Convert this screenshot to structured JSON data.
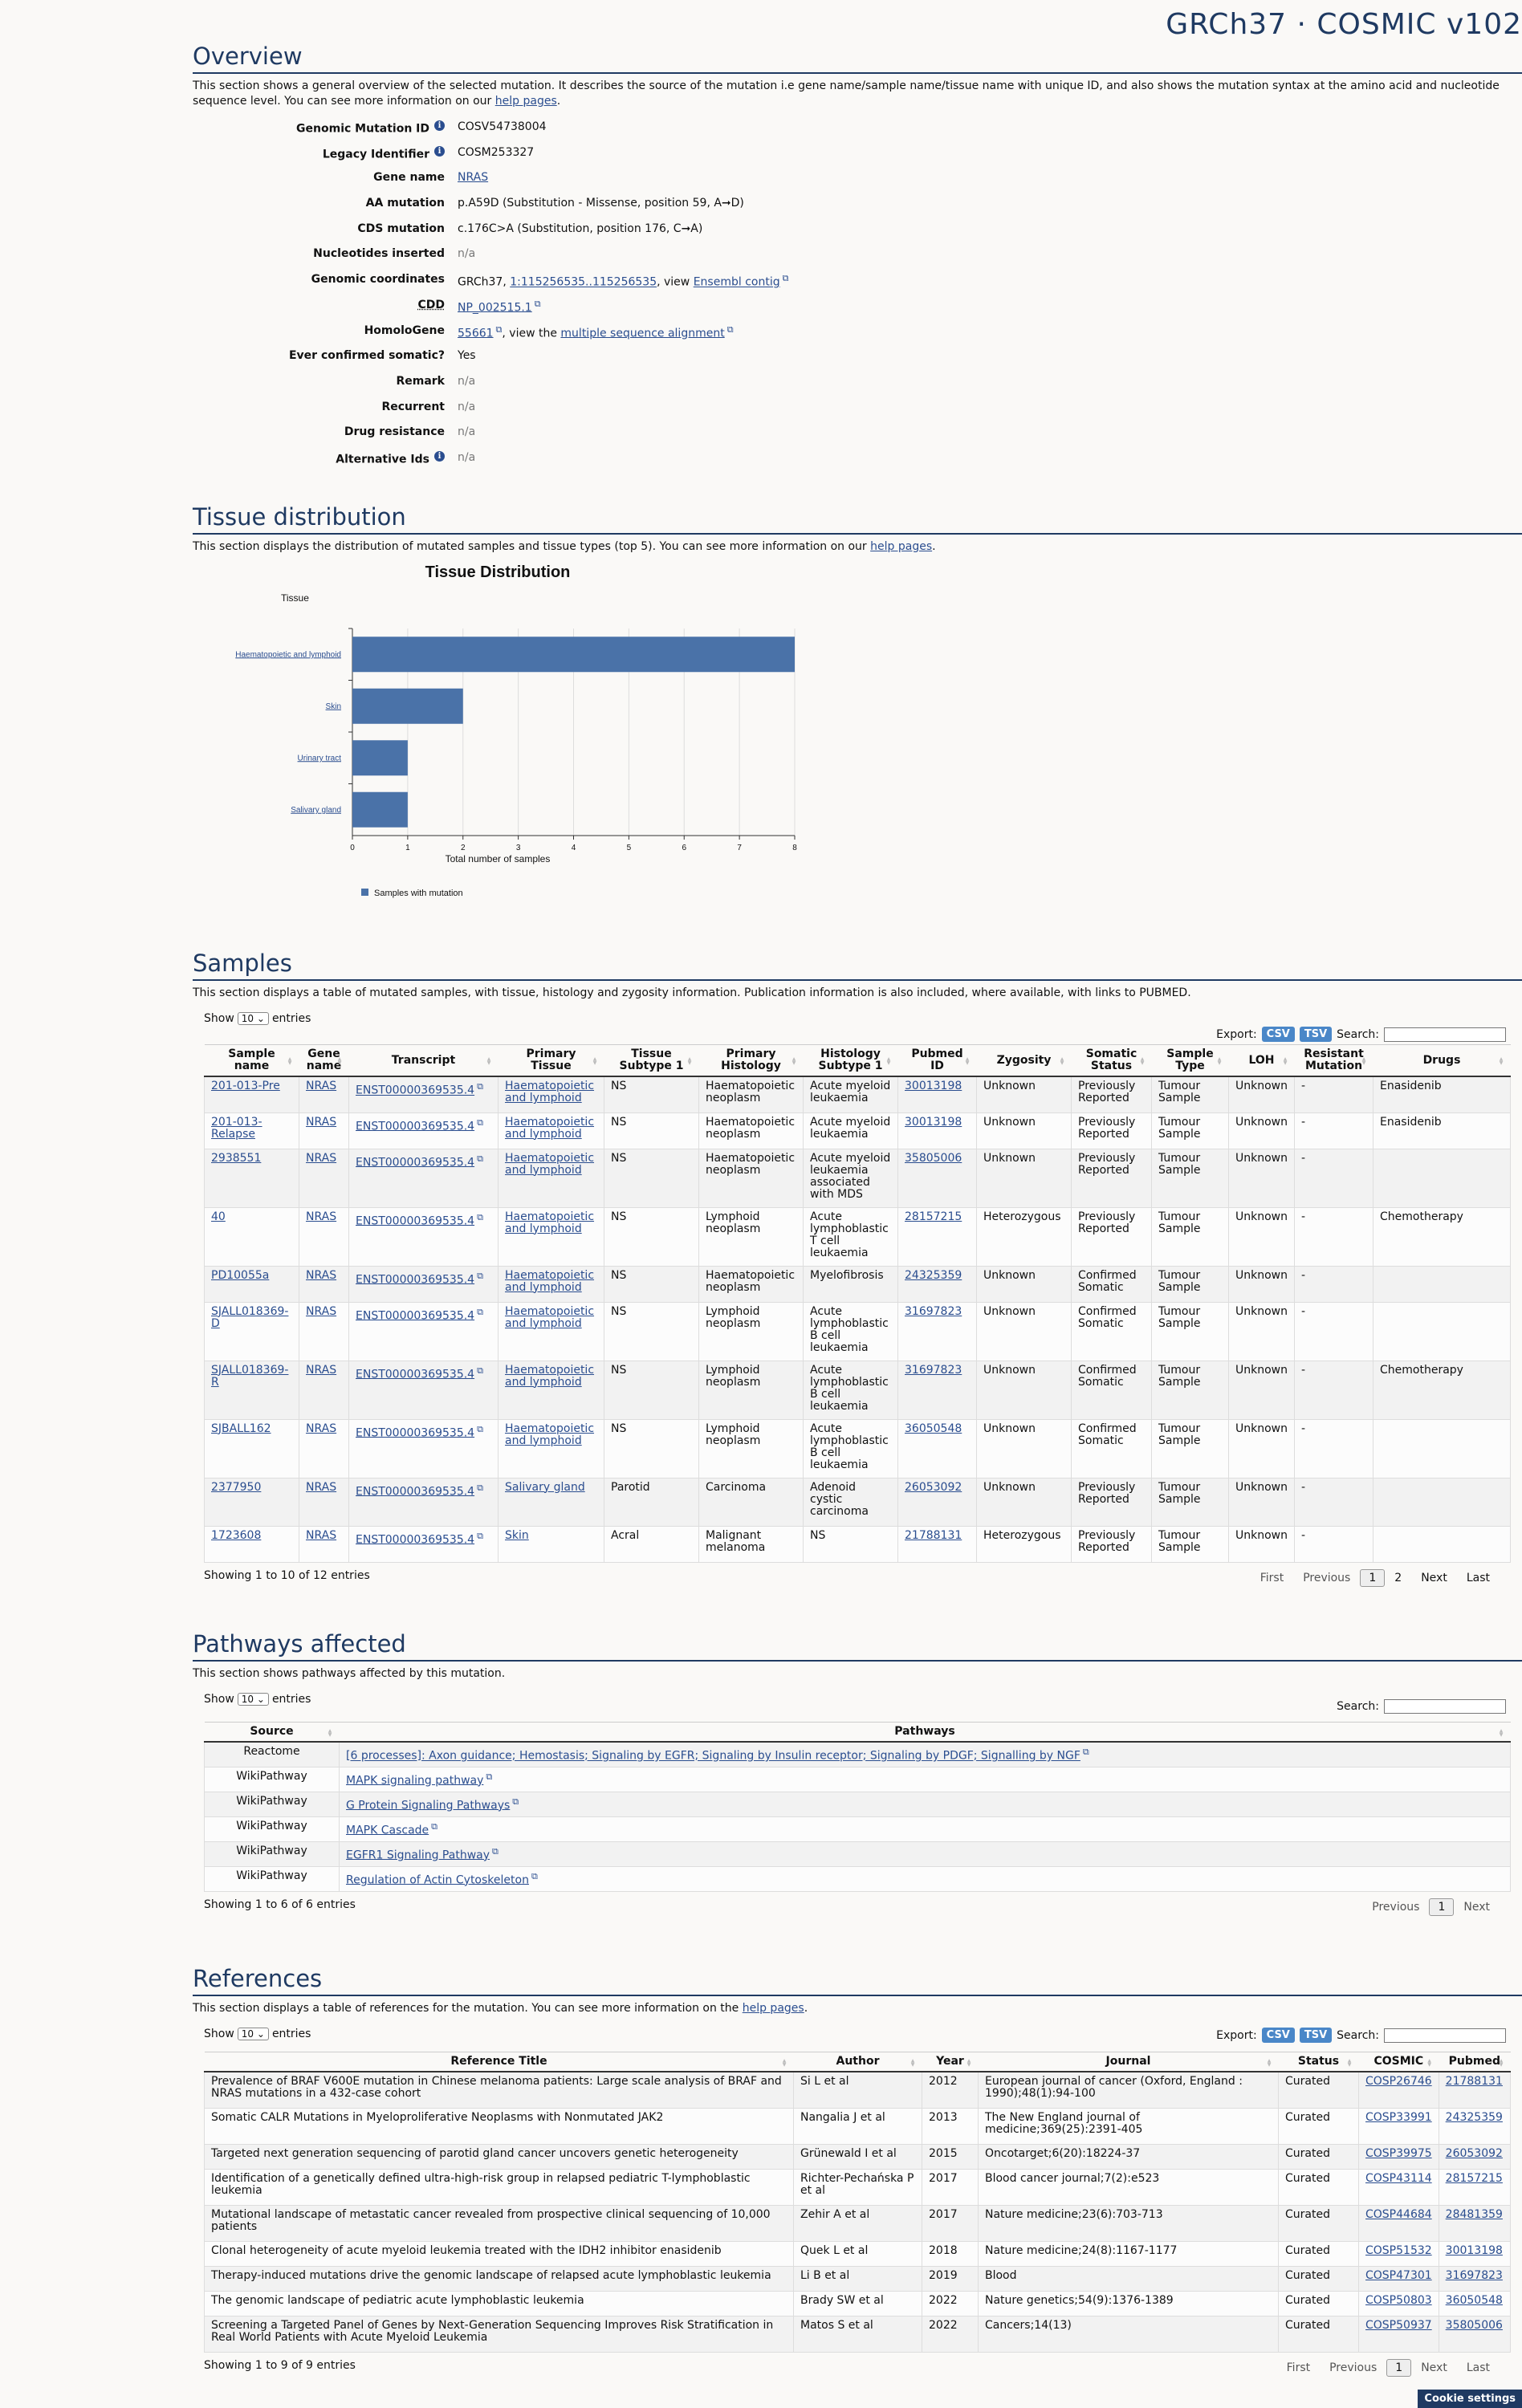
{
  "header": {
    "title": "GRCh37 · COSMIC v102"
  },
  "overview": {
    "title": "Overview",
    "desc_pre": "This section shows a general overview of the selected mutation. It describes the source of the mutation i.e gene name/sample name/tissue name with unique ID, and also shows the mutation syntax at the amino acid and nucleotide sequence level. You can see more information on our ",
    "desc_link": "help pages",
    "desc_post": ".",
    "fields": {
      "genomic_mutation_id": {
        "label": "Genomic Mutation ID",
        "value": "COSV54738004"
      },
      "legacy_identifier": {
        "label": "Legacy Identifier",
        "value": "COSM253327"
      },
      "gene_name": {
        "label": "Gene name",
        "value": "NRAS"
      },
      "aa_mutation": {
        "label": "AA mutation",
        "value": "p.A59D (Substitution - Missense, position 59, A➞D)"
      },
      "cds_mutation": {
        "label": "CDS mutation",
        "value": "c.176C>A (Substitution, position 176, C➞A)"
      },
      "nucleotides_inserted": {
        "label": "Nucleotides inserted",
        "value": "n/a"
      },
      "genomic_coordinates": {
        "label": "Genomic coordinates",
        "prefix": "GRCh37, ",
        "link": "1:115256535..115256535",
        "mid": ", view ",
        "link2": "Ensembl contig"
      },
      "cdd": {
        "label": "CDD",
        "value": "NP_002515.1"
      },
      "homologene": {
        "label": "HomoloGene",
        "link": "55661",
        "mid": ", view the ",
        "link2": "multiple sequence alignment"
      },
      "ever_confirmed": {
        "label": "Ever confirmed somatic?",
        "value": "Yes"
      },
      "remark": {
        "label": "Remark",
        "value": "n/a"
      },
      "recurrent": {
        "label": "Recurrent",
        "value": "n/a"
      },
      "drug_resistance": {
        "label": "Drug resistance",
        "value": "n/a"
      },
      "alternative_ids": {
        "label": "Alternative Ids",
        "value": "n/a"
      }
    }
  },
  "tissue": {
    "title": "Tissue distribution",
    "desc_pre": "This section displays the distribution of mutated samples and tissue types (top 5). You can see more information on our ",
    "desc_link": "help pages",
    "desc_post": "."
  },
  "chart_data": {
    "type": "bar",
    "orientation": "horizontal",
    "title": "Tissue Distribution",
    "ylabel": "Tissue",
    "xlabel": "Total number of samples",
    "categories": [
      "Haematopoietic and lymphoid",
      "Skin",
      "Urinary tract",
      "Salivary gland"
    ],
    "values": [
      8,
      2,
      1,
      1
    ],
    "xlim": [
      0,
      8
    ],
    "xticks": [
      "0",
      "1",
      "2",
      "3",
      "4",
      "5",
      "6",
      "7",
      "8"
    ],
    "legend": "Samples with mutation",
    "color": "#4a72a8",
    "grid": true
  },
  "samples": {
    "title": "Samples",
    "desc": "This section displays a table of mutated samples, with tissue, histology and zygosity information. Publication information is also included, where available, with links to PUBMED.",
    "show": "Show",
    "entries": "entries",
    "length": "10",
    "export": "Export:",
    "csv": "CSV",
    "tsv": "TSV",
    "search": "Search:",
    "headers": [
      "Sample name",
      "Gene name",
      "Transcript",
      "Primary Tissue",
      "Tissue Subtype 1",
      "Primary Histology",
      "Histology Subtype 1",
      "Pubmed ID",
      "Zygosity",
      "Somatic Status",
      "Sample Type",
      "LOH",
      "Resistant Mutation",
      "Drugs"
    ],
    "rows": [
      [
        "201-013-Pre",
        "NRAS",
        "ENST00000369535.4",
        "Haematopoietic and lymphoid",
        "NS",
        "Haematopoietic neoplasm",
        "Acute myeloid leukaemia",
        "30013198",
        "Unknown",
        "Previously Reported",
        "Tumour Sample",
        "Unknown",
        "-",
        "Enasidenib"
      ],
      [
        "201-013-Relapse",
        "NRAS",
        "ENST00000369535.4",
        "Haematopoietic and lymphoid",
        "NS",
        "Haematopoietic neoplasm",
        "Acute myeloid leukaemia",
        "30013198",
        "Unknown",
        "Previously Reported",
        "Tumour Sample",
        "Unknown",
        "-",
        "Enasidenib"
      ],
      [
        "2938551",
        "NRAS",
        "ENST00000369535.4",
        "Haematopoietic and lymphoid",
        "NS",
        "Haematopoietic neoplasm",
        "Acute myeloid leukaemia associated with MDS",
        "35805006",
        "Unknown",
        "Previously Reported",
        "Tumour Sample",
        "Unknown",
        "-",
        ""
      ],
      [
        "40",
        "NRAS",
        "ENST00000369535.4",
        "Haematopoietic and lymphoid",
        "NS",
        "Lymphoid neoplasm",
        "Acute lymphoblastic T cell leukaemia",
        "28157215",
        "Heterozygous",
        "Previously Reported",
        "Tumour Sample",
        "Unknown",
        "-",
        "Chemotherapy"
      ],
      [
        "PD10055a",
        "NRAS",
        "ENST00000369535.4",
        "Haematopoietic and lymphoid",
        "NS",
        "Haematopoietic neoplasm",
        "Myelofibrosis",
        "24325359",
        "Unknown",
        "Confirmed Somatic",
        "Tumour Sample",
        "Unknown",
        "-",
        ""
      ],
      [
        "SJALL018369-D",
        "NRAS",
        "ENST00000369535.4",
        "Haematopoietic and lymphoid",
        "NS",
        "Lymphoid neoplasm",
        "Acute lymphoblastic B cell leukaemia",
        "31697823",
        "Unknown",
        "Confirmed Somatic",
        "Tumour Sample",
        "Unknown",
        "-",
        ""
      ],
      [
        "SJALL018369-R",
        "NRAS",
        "ENST00000369535.4",
        "Haematopoietic and lymphoid",
        "NS",
        "Lymphoid neoplasm",
        "Acute lymphoblastic B cell leukaemia",
        "31697823",
        "Unknown",
        "Confirmed Somatic",
        "Tumour Sample",
        "Unknown",
        "-",
        "Chemotherapy"
      ],
      [
        "SJBALL162",
        "NRAS",
        "ENST00000369535.4",
        "Haematopoietic and lymphoid",
        "NS",
        "Lymphoid neoplasm",
        "Acute lymphoblastic B cell leukaemia",
        "36050548",
        "Unknown",
        "Confirmed Somatic",
        "Tumour Sample",
        "Unknown",
        "-",
        ""
      ],
      [
        "2377950",
        "NRAS",
        "ENST00000369535.4",
        "Salivary gland",
        "Parotid",
        "Carcinoma",
        "Adenoid cystic carcinoma",
        "26053092",
        "Unknown",
        "Previously Reported",
        "Tumour Sample",
        "Unknown",
        "-",
        ""
      ],
      [
        "1723608",
        "NRAS",
        "ENST00000369535.4",
        "Skin",
        "Acral",
        "Malignant melanoma",
        "NS",
        "21788131",
        "Heterozygous",
        "Previously Reported",
        "Tumour Sample",
        "Unknown",
        "-",
        ""
      ]
    ],
    "info": "Showing 1 to 10 of 12 entries",
    "pager": {
      "first": "First",
      "previous": "Previous",
      "p1": "1",
      "p2": "2",
      "next": "Next",
      "last": "Last"
    }
  },
  "pathways": {
    "title": "Pathways affected",
    "desc": "This section shows pathways affected by this mutation.",
    "show": "Show",
    "entries": "entries",
    "length": "10",
    "search": "Search:",
    "headers": [
      "Source",
      "Pathways"
    ],
    "rows": [
      [
        "Reactome",
        "[6 processes]: Axon guidance; Hemostasis; Signaling by EGFR; Signaling by Insulin receptor; Signaling by PDGF; Signalling by NGF"
      ],
      [
        "WikiPathway",
        "MAPK signaling pathway"
      ],
      [
        "WikiPathway",
        "G Protein Signaling Pathways"
      ],
      [
        "WikiPathway",
        "MAPK Cascade"
      ],
      [
        "WikiPathway",
        "EGFR1 Signaling Pathway"
      ],
      [
        "WikiPathway",
        "Regulation of Actin Cytoskeleton"
      ]
    ],
    "info": "Showing 1 to 6 of 6 entries",
    "pager": {
      "previous": "Previous",
      "p1": "1",
      "next": "Next"
    }
  },
  "references": {
    "title": "References",
    "desc_pre": "This section displays a table of references for the mutation. You can see more information on the ",
    "desc_link": "help pages",
    "desc_post": ".",
    "show": "Show",
    "entries": "entries",
    "length": "10",
    "export": "Export:",
    "csv": "CSV",
    "tsv": "TSV",
    "search": "Search:",
    "headers": [
      "Reference Title",
      "Author",
      "Year",
      "Journal",
      "Status",
      "COSMIC",
      "Pubmed"
    ],
    "rows": [
      [
        "Prevalence of BRAF V600E mutation in Chinese melanoma patients: Large scale analysis of BRAF and NRAS mutations in a 432-case cohort",
        "Si L et al",
        "2012",
        "European journal of cancer (Oxford, England : 1990);48(1):94-100",
        "Curated",
        "COSP26746",
        "21788131"
      ],
      [
        "Somatic CALR Mutations in Myeloproliferative Neoplasms with Nonmutated JAK2",
        "Nangalia J et al",
        "2013",
        "The New England journal of medicine;369(25):2391-405",
        "Curated",
        "COSP33991",
        "24325359"
      ],
      [
        "Targeted next generation sequencing of parotid gland cancer uncovers genetic heterogeneity",
        "Grünewald I et al",
        "2015",
        "Oncotarget;6(20):18224-37",
        "Curated",
        "COSP39975",
        "26053092"
      ],
      [
        "Identification of a genetically defined ultra-high-risk group in relapsed pediatric T-lymphoblastic leukemia",
        "Richter-Pechańska P et al",
        "2017",
        "Blood cancer journal;7(2):e523",
        "Curated",
        "COSP43114",
        "28157215"
      ],
      [
        "Mutational landscape of metastatic cancer revealed from prospective clinical sequencing of 10,000 patients",
        "Zehir A et al",
        "2017",
        "Nature medicine;23(6):703-713",
        "Curated",
        "COSP44684",
        "28481359"
      ],
      [
        "Clonal heterogeneity of acute myeloid leukemia treated with the IDH2 inhibitor enasidenib",
        "Quek L et al",
        "2018",
        "Nature medicine;24(8):1167-1177",
        "Curated",
        "COSP51532",
        "30013198"
      ],
      [
        "Therapy-induced mutations drive the genomic landscape of relapsed acute lymphoblastic leukemia",
        "Li B et al",
        "2019",
        "Blood",
        "Curated",
        "COSP47301",
        "31697823"
      ],
      [
        "The genomic landscape of pediatric acute lymphoblastic leukemia",
        "Brady SW et al",
        "2022",
        "Nature genetics;54(9):1376-1389",
        "Curated",
        "COSP50803",
        "36050548"
      ],
      [
        "Screening a Targeted Panel of Genes by Next-Generation Sequencing Improves Risk Stratification in Real World Patients with Acute Myeloid Leukemia",
        "Matos S et al",
        "2022",
        "Cancers;14(13)",
        "Curated",
        "COSP50937",
        "35805006"
      ]
    ],
    "info": "Showing 1 to 9 of 9 entries",
    "pager": {
      "first": "First",
      "previous": "Previous",
      "p1": "1",
      "next": "Next",
      "last": "Last"
    }
  },
  "cookie": "Cookie settings"
}
